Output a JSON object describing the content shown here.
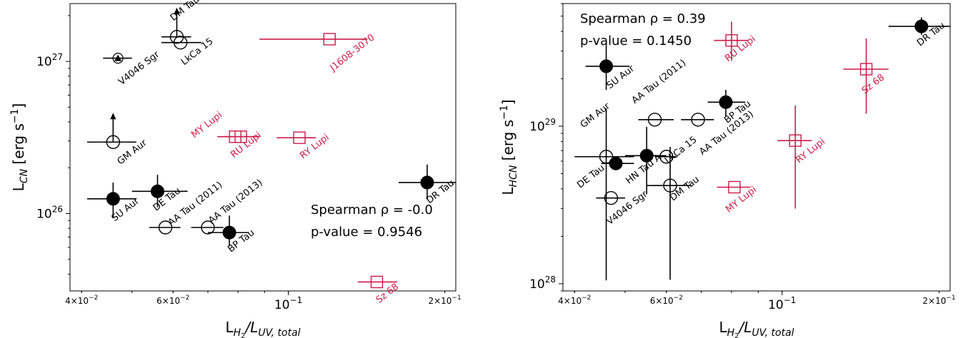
{
  "colors": {
    "black": "#000000",
    "red": "#cc1a4a"
  },
  "chart_data": [
    {
      "type": "scatter",
      "xscale": "log",
      "yscale": "log",
      "xlim": [
        0.038,
        0.21
      ],
      "ylim": [
        3.1e+25,
        2.4e+27
      ],
      "xlabel": {
        "main": "L",
        "sub1": "H",
        "sub2": "2",
        "mid": "/L",
        "sub3": "UV, total"
      },
      "ylabel": {
        "main": "L",
        "sub": "CN",
        "unit": " [erg s",
        "sup": "−1",
        "close": "]"
      },
      "x_ticks": [
        {
          "value": 0.04,
          "label": "4×10",
          "sup": "−2",
          "major": false
        },
        {
          "value": 0.06,
          "label": "6×10",
          "sup": "−2",
          "major": false
        },
        {
          "value": 0.1,
          "label": "10",
          "sup": "−1",
          "major": true
        },
        {
          "value": 0.2,
          "label": "2×10",
          "sup": "−1",
          "major": false
        }
      ],
      "y_ticks": [
        {
          "value": 1e+26,
          "label": "10",
          "sup": "26"
        },
        {
          "value": 1e+27,
          "label": "10",
          "sup": "27"
        }
      ],
      "stat": {
        "line1": "Spearman ρ =  -0.0",
        "line2": "p-value = 0.9546"
      },
      "points": [
        {
          "name": "DM Tau",
          "x": 0.061,
          "y": 1.45e+27,
          "xerr": [
            0.057,
            0.065
          ],
          "marker": "open-circle",
          "color": "black",
          "upper_limit": true,
          "label_dx": -5,
          "label_dy": -22
        },
        {
          "name": "LkCa 15",
          "x": 0.062,
          "y": 1.33e+27,
          "xerr": [
            0.057,
            0.068
          ],
          "marker": "open-circle",
          "color": "black",
          "label_dx": 5,
          "label_dy": 32
        },
        {
          "name": "V4046 Sgr",
          "x": 0.047,
          "y": 1.05e+27,
          "xerr": [
            0.044,
            0.05
          ],
          "marker": "triangle",
          "color": "black",
          "label_dx": 5,
          "label_dy": 38
        },
        {
          "name": "J1608-3070",
          "x": 0.12,
          "y": 1.4e+27,
          "xerr": [
            0.088,
            0.142
          ],
          "marker": "open-square",
          "color": "red",
          "label_dx": 5,
          "label_dy": 45
        },
        {
          "name": "GM Aur",
          "x": 0.046,
          "y": 2.95e+26,
          "xerr": [
            0.041,
            0.051
          ],
          "marker": "open-circle",
          "color": "black",
          "upper_limit": true,
          "label_dx": 10,
          "label_dy": 32
        },
        {
          "name": "MY Lupi",
          "x": 0.081,
          "y": 3.2e+26,
          "xerr": [
            0.075,
            0.086
          ],
          "marker": "open-square",
          "color": "red",
          "label_dx": -65,
          "label_dy": 2
        },
        {
          "name": "RU Lupi",
          "x": 0.079,
          "y": 3.2e+26,
          "xerr": [
            0.073,
            0.088
          ],
          "marker": "open-square",
          "color": "red",
          "label_dx": -2,
          "label_dy": 30
        },
        {
          "name": "RY Lupi",
          "x": 0.105,
          "y": 3.15e+26,
          "xerr": [
            0.095,
            0.113
          ],
          "marker": "open-square",
          "color": "red",
          "label_dx": 5,
          "label_dy": 30
        },
        {
          "name": "DR Tau",
          "x": 0.185,
          "y": 1.6e+26,
          "xerr": [
            0.163,
            0.21
          ],
          "yerr": [
            1.25e+26,
            2.1e+26
          ],
          "marker": "filled-circle",
          "color": "black",
          "label_dx": 3,
          "label_dy": 30
        },
        {
          "name": "SU Aur",
          "x": 0.046,
          "y": 1.25e+26,
          "xerr": [
            0.041,
            0.051
          ],
          "yerr": [
            9.3e+25,
            1.6e+26
          ],
          "marker": "filled-circle",
          "color": "black",
          "label_dx": 2,
          "label_dy": 32
        },
        {
          "name": "DE Tau",
          "x": 0.056,
          "y": 1.4e+26,
          "xerr": [
            0.05,
            0.064
          ],
          "yerr": [
            1.1e+26,
            1.8e+26
          ],
          "marker": "filled-circle",
          "color": "black",
          "label_dx": -2,
          "label_dy": 28
        },
        {
          "name": "AA Tau (2011)",
          "x": 0.058,
          "y": 8.1e+25,
          "xerr": [
            0.054,
            0.062
          ],
          "marker": "open-circle",
          "color": "black",
          "label_dx": 8,
          "label_dy": -2
        },
        {
          "name": "AA Tau (2013)",
          "x": 0.07,
          "y": 8.1e+25,
          "xerr": [
            0.065,
            0.075
          ],
          "marker": "open-circle",
          "color": "black",
          "label_dx": 5,
          "label_dy": -5
        },
        {
          "name": "BP Tau",
          "x": 0.077,
          "y": 7.5e+25,
          "xerr": [
            0.07,
            0.084
          ],
          "yerr": [
            6.1e+25,
            9.7e+25
          ],
          "marker": "filled-circle",
          "color": "black",
          "label_dx": 2,
          "label_dy": 28
        },
        {
          "name": "Sz 68",
          "x": 0.148,
          "y": 3.55e+25,
          "xerr": [
            0.136,
            0.162
          ],
          "marker": "open-square",
          "color": "red",
          "label_dx": 3,
          "label_dy": 30
        }
      ]
    },
    {
      "type": "scatter",
      "xscale": "log",
      "yscale": "log",
      "xlim": [
        0.038,
        0.21
      ],
      "ylim": [
        9e+27,
        6e+29
      ],
      "xlabel": {
        "main": "L",
        "sub1": "H",
        "sub2": "2",
        "mid": "/L",
        "sub3": "UV, total"
      },
      "ylabel": {
        "main": "L",
        "sub": "HCN",
        "unit": " [erg s",
        "sup": "−1",
        "close": "]"
      },
      "x_ticks": [
        {
          "value": 0.04,
          "label": "4×10",
          "sup": "−2",
          "major": false
        },
        {
          "value": 0.06,
          "label": "6×10",
          "sup": "−2",
          "major": false
        },
        {
          "value": 0.1,
          "label": "10",
          "sup": "−1",
          "major": true
        },
        {
          "value": 0.2,
          "label": "2×10",
          "sup": "−1",
          "major": false
        }
      ],
      "y_ticks": [
        {
          "value": 1e+28,
          "label": "10",
          "sup": "28"
        },
        {
          "value": 1e+29,
          "label": "10",
          "sup": "29"
        }
      ],
      "stat": {
        "line1": "Spearman ρ =  0.39",
        "line2": "p-value = 0.1450"
      },
      "points": [
        {
          "name": "DR Tau",
          "x": 0.185,
          "y": 4.3e+29,
          "xerr": [
            0.16,
            0.21
          ],
          "yerr": [
            3.8e+29,
            4.9e+29
          ],
          "marker": "filled-circle",
          "color": "black",
          "label_dx": -2,
          "label_dy": 28
        },
        {
          "name": "RU Lupi",
          "x": 0.08,
          "y": 3.5e+29,
          "xerr": [
            0.074,
            0.086
          ],
          "yerr": [
            2.6e+29,
            4.6e+29
          ],
          "marker": "open-square",
          "color": "red",
          "label_dx": -5,
          "label_dy": 30
        },
        {
          "name": "Sz 68",
          "x": 0.145,
          "y": 2.3e+29,
          "xerr": [
            0.131,
            0.16
          ],
          "yerr": [
            1.2e+29,
            3.6e+29
          ],
          "marker": "open-square",
          "color": "red",
          "label_dx": -2,
          "label_dy": 35
        },
        {
          "name": "SU Aur",
          "x": 0.046,
          "y": 2.4e+29,
          "xerr": [
            0.042,
            0.051
          ],
          "yerr": [
            1.7e+29,
            3.3e+29
          ],
          "marker": "filled-circle",
          "color": "black",
          "label_dx": 5,
          "label_dy": 32
        },
        {
          "name": "BP Tau",
          "x": 0.078,
          "y": 1.42e+29,
          "xerr": [
            0.072,
            0.085
          ],
          "yerr": [
            1.15e+29,
            1.7e+29
          ],
          "marker": "filled-circle",
          "color": "black",
          "label_dx": 2,
          "label_dy": 30
        },
        {
          "name": "AA Tau (2011)",
          "x": 0.057,
          "y": 1.1e+29,
          "xerr": [
            0.053,
            0.062
          ],
          "marker": "open-circle",
          "color": "black",
          "label_dx": -28,
          "label_dy": -22
        },
        {
          "name": "AA Tau (2013)",
          "x": 0.069,
          "y": 1.1e+29,
          "xerr": [
            0.064,
            0.074
          ],
          "marker": "open-circle",
          "color": "black",
          "label_dx": 6,
          "label_dy": 50
        },
        {
          "name": "GM Aur",
          "x": 0.046,
          "y": 6.4e+28,
          "xerr": [
            0.04,
            0.052
          ],
          "yerr": [
            1.05e+28,
            1.3e+29
          ],
          "marker": "open-circle",
          "color": "black",
          "label_dx": -32,
          "label_dy": -40
        },
        {
          "name": "RY Lupi",
          "x": 0.106,
          "y": 8.1e+28,
          "xerr": [
            0.098,
            0.114
          ],
          "yerr": [
            3e+28,
            1.35e+29
          ],
          "marker": "open-square",
          "color": "red",
          "label_dx": 5,
          "label_dy": 32
        },
        {
          "name": "DE Tau",
          "x": 0.048,
          "y": 5.8e+28,
          "xerr": [
            0.045,
            0.052
          ],
          "marker": "filled-circle",
          "color": "black",
          "label_dx": -50,
          "label_dy": 35
        },
        {
          "name": "HN Tau A",
          "x": 0.055,
          "y": 6.5e+28,
          "xerr": [
            0.05,
            0.06
          ],
          "yerr": [
            3.7e+28,
            9.9e+28
          ],
          "marker": "filled-circle",
          "color": "black",
          "label_dx": -25,
          "label_dy": 40
        },
        {
          "name": "LkCa 15",
          "x": 0.06,
          "y": 6.4e+28,
          "xerr": [
            0.057,
            0.063
          ],
          "marker": "open-circle",
          "color": "black",
          "label_dx": 2,
          "label_dy": 10
        },
        {
          "name": "V4046 Sgr",
          "x": 0.047,
          "y": 3.5e+28,
          "xerr": [
            0.044,
            0.05
          ],
          "marker": "open-circle",
          "color": "black",
          "label_dx": -2,
          "label_dy": 38
        },
        {
          "name": "DM Tau",
          "x": 0.061,
          "y": 4.2e+28,
          "xerr": [
            0.055,
            0.067
          ],
          "yerr": [
            1.06e+28,
            7.4e+28
          ],
          "marker": "open-circle",
          "color": "black",
          "label_dx": 4,
          "label_dy": 22
        },
        {
          "name": "MY Lupi",
          "x": 0.081,
          "y": 4.1e+28,
          "xerr": [
            0.075,
            0.087
          ],
          "marker": "open-square",
          "color": "red",
          "label_dx": -8,
          "label_dy": 36
        }
      ]
    }
  ]
}
